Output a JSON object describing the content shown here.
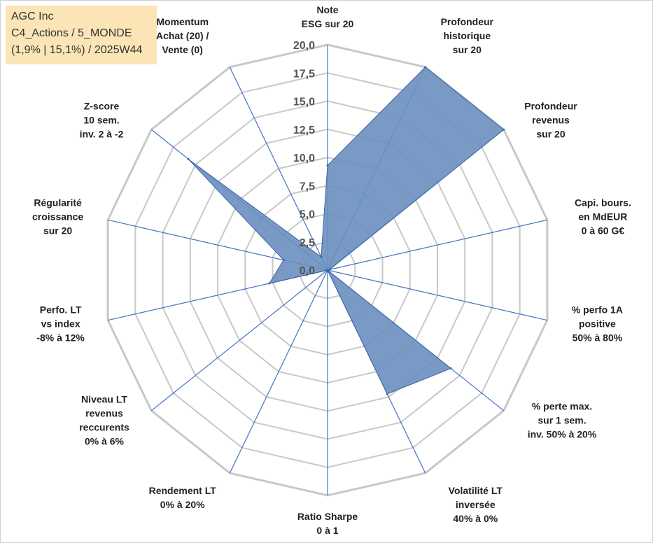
{
  "title": {
    "company": "AGC Inc",
    "category": "C4_Actions / 5_MONDE",
    "stats": "(1,9% | 15,1%) / 2025W44"
  },
  "chart_data": {
    "type": "radar",
    "rmax": 20,
    "ticks": [
      "0,0",
      "2,5",
      "5,0",
      "7,5",
      "10,0",
      "12,5",
      "15,0",
      "17,5",
      "20,0"
    ],
    "axes": [
      {
        "label": [
          "Note",
          "ESG sur 20"
        ],
        "value": 9.3
      },
      {
        "label": [
          "Profondeur",
          "historique",
          "sur 20"
        ],
        "value": 20.0
      },
      {
        "label": [
          "Profondeur",
          "revenus",
          "sur 20"
        ],
        "value": 20.0
      },
      {
        "label": [
          "Capi. bours.",
          "en MdEUR",
          "0 à 60 G€"
        ],
        "value": 0.2
      },
      {
        "label": [
          "% perfo 1A",
          "positive",
          "50% à 80%"
        ],
        "value": 0.0
      },
      {
        "label": [
          "% perte max.",
          "sur 1 sem.",
          "inv. 50% à 20%"
        ],
        "value": 14.0
      },
      {
        "label": [
          "Volatilité LT",
          "inversée",
          "40% à 0%"
        ],
        "value": 12.2
      },
      {
        "label": [
          "Ratio Sharpe",
          "0 à 1"
        ],
        "value": 0.0
      },
      {
        "label": [
          "Rendement LT",
          "0% à 20%"
        ],
        "value": 0.0
      },
      {
        "label": [
          "Niveau LT",
          "revenus",
          "reccurents",
          "0% à 6%"
        ],
        "value": 0.0
      },
      {
        "label": [
          "Perfo. LT",
          "vs index",
          "-8% à 12%"
        ],
        "value": 5.3
      },
      {
        "label": [
          "Régularité",
          "croissance",
          "sur 20"
        ],
        "value": 4.0
      },
      {
        "label": [
          "Z-score",
          "10 sem.",
          "inv. 2 à -2"
        ],
        "value": 15.8
      },
      {
        "label": [
          "Momentum",
          "Achat (20) /",
          "Vente (0)"
        ],
        "value": 1.3
      }
    ],
    "grid": true,
    "legend": "none",
    "colors": {
      "fill": "#6a8fbf",
      "stroke": "#3a65a8",
      "grid": "#c8c8c8",
      "axis": "#4472c4"
    }
  }
}
